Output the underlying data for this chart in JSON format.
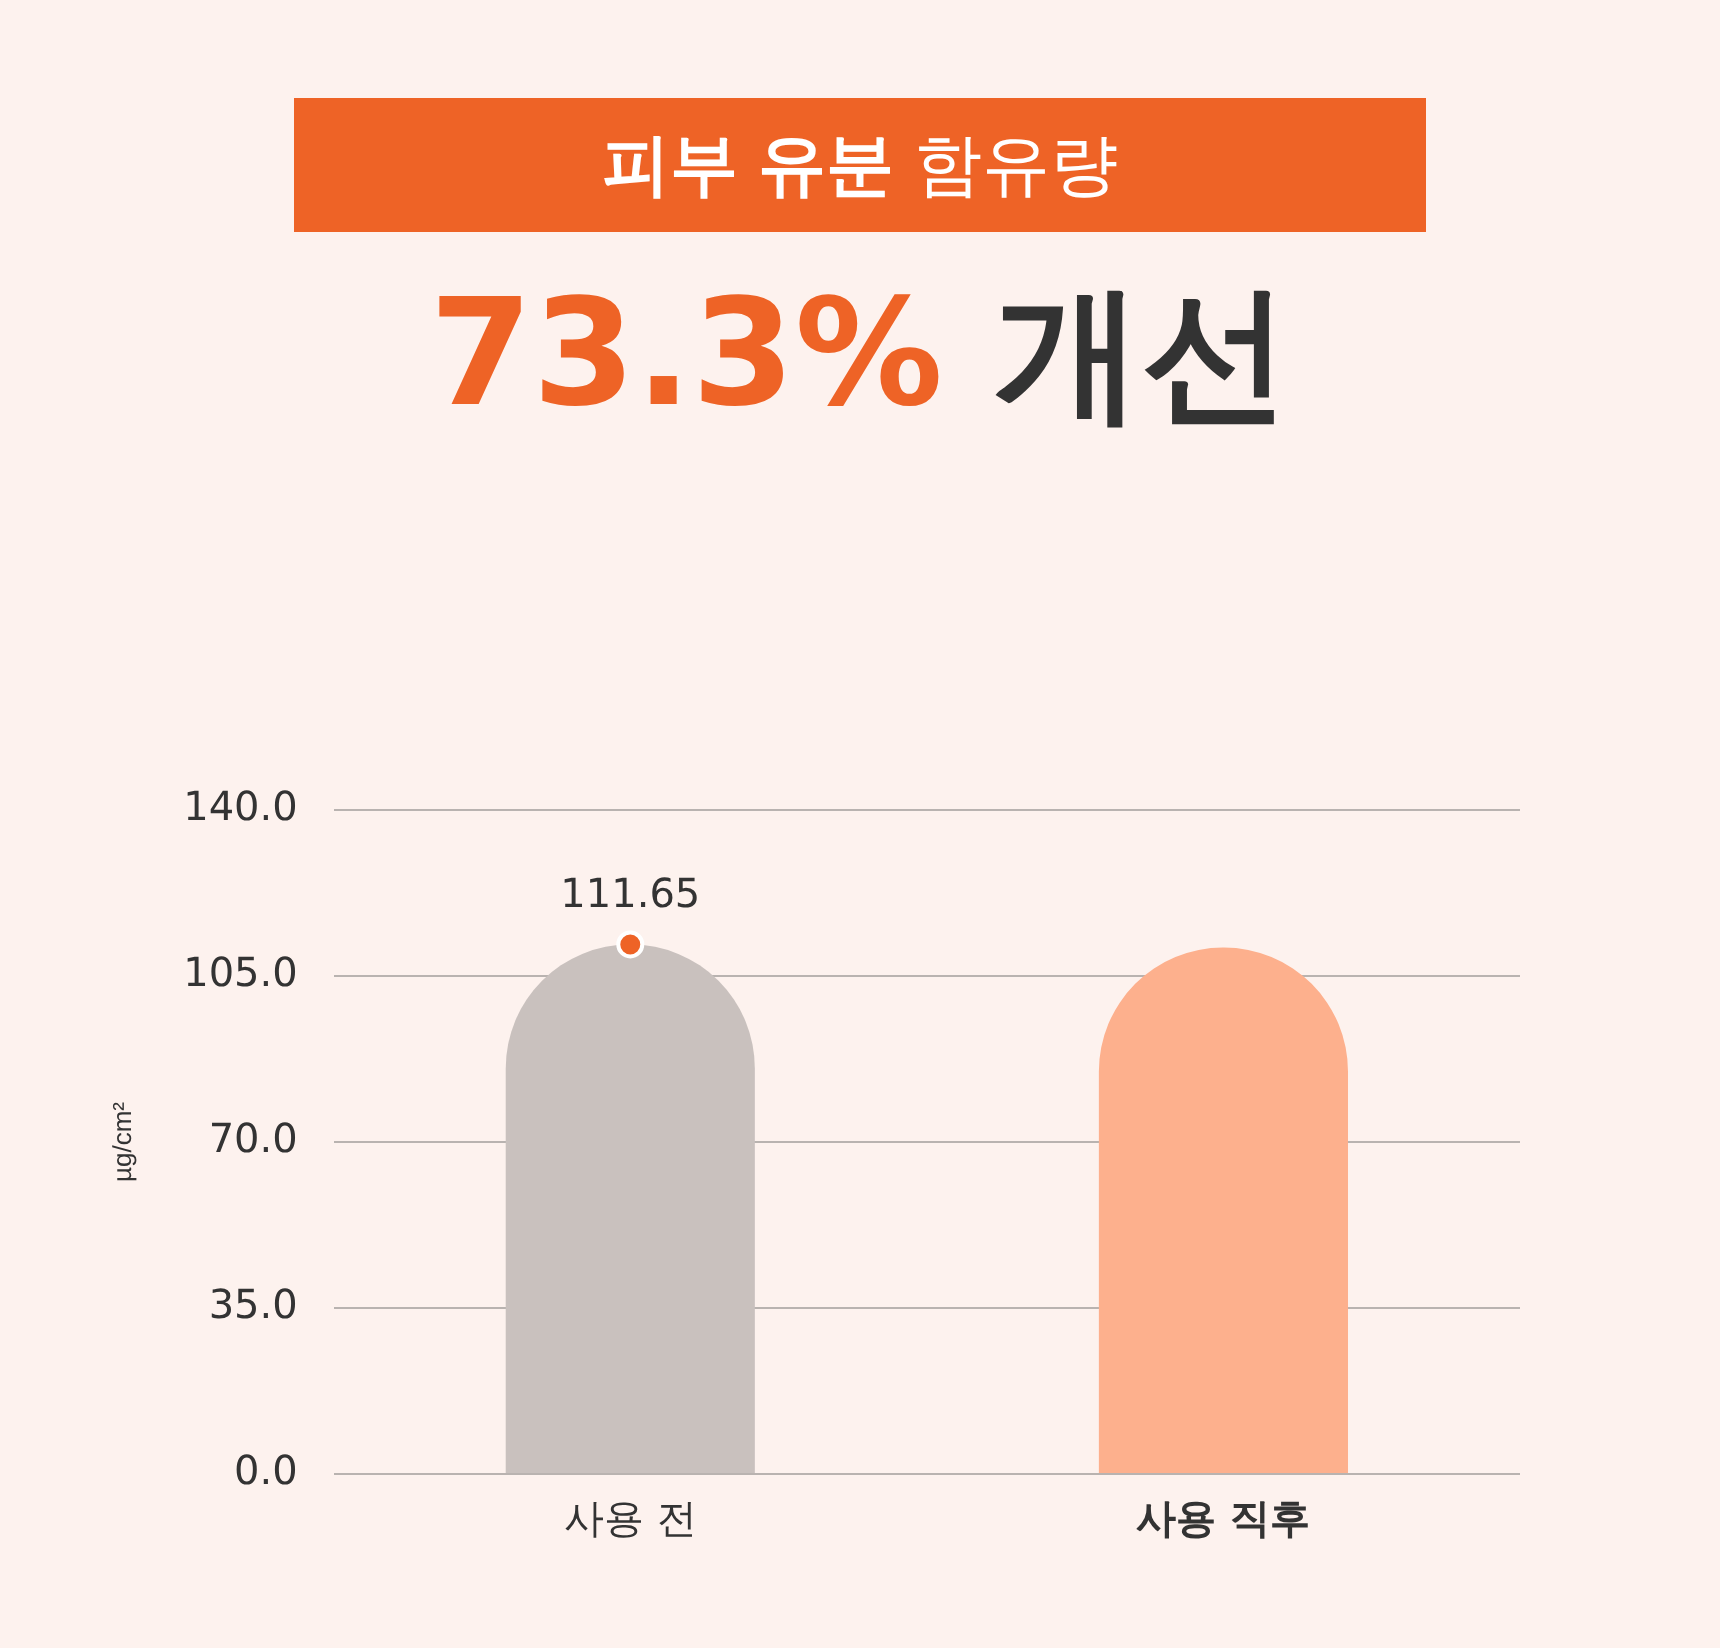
{
  "chart_data": {
    "type": "bar",
    "title": "피부 유분 함유량",
    "subtitle": "73.3% 개선",
    "ylabel": "µg/cm²",
    "categories": [
      "사용 전",
      "사용 직후"
    ],
    "series": [
      {
        "colors": [
          "#c9c1be",
          "#fdb08d"
        ],
        "values": [
          111.65,
          111
        ],
        "value_labels": [
          "111.65",
          null
        ]
      },
      {
        "type": "scatter",
        "color": "#ee6326",
        "x": [
          "사용 전"
        ],
        "values": [
          111.65
        ],
        "marker": "circle"
      }
    ],
    "ylim": [
      0,
      140
    ],
    "yticks": [
      {
        "value": 0,
        "label": "0.0"
      },
      {
        "value": 35,
        "label": "35.0"
      },
      {
        "value": 70,
        "label": "70.0"
      },
      {
        "value": 105,
        "label": "105.0"
      },
      {
        "value": 140,
        "label": "140.0"
      }
    ],
    "grid": "y",
    "legend": false
  }
}
